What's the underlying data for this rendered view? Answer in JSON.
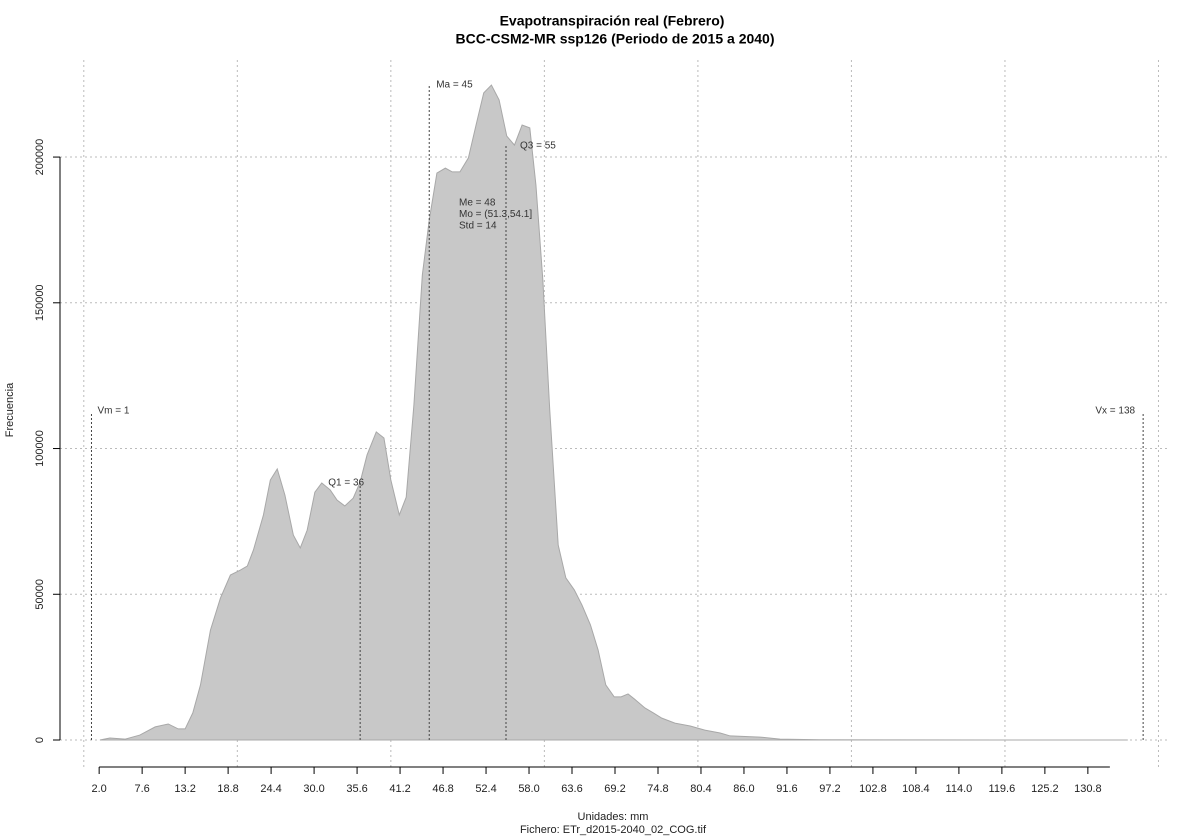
{
  "chart_data": {
    "type": "area",
    "title": "Evapotranspiración real (Febrero)",
    "subtitle": "BCC-CSM2-MR ssp126 (Periodo de 2015 a 2040)",
    "x_label": "Unidades: mm",
    "caption": "Fichero: ETr_d2015-2040_02_COG.tif",
    "y_label": "Frecuencia",
    "color": "#c8c8c8",
    "x": [
      2.1,
      3.4,
      5.4,
      7.3,
      9.3,
      11.0,
      12.3,
      13.2,
      14.2,
      15.2,
      16.5,
      17.8,
      19.1,
      20.4,
      21.3,
      22.1,
      23.4,
      24.3,
      25.2,
      26.2,
      27.3,
      28.2,
      29.1,
      30.1,
      31.0,
      32.1,
      33.0,
      34.0,
      35.1,
      36.0,
      36.9,
      38.1,
      39.1,
      40.0,
      41.1,
      42.0,
      43.0,
      44.1,
      45.0,
      46.0,
      47.1,
      48.0,
      49.0,
      50.1,
      51.1,
      52.1,
      53.1,
      54.1,
      55.1,
      56.1,
      57.1,
      58.1,
      58.9,
      59.8,
      60.7,
      61.8,
      62.8,
      63.9,
      64.9,
      66.0,
      67.0,
      68.0,
      69.1,
      70.0,
      70.9,
      71.9,
      73.1,
      74.2,
      75.3,
      77.0,
      79.0,
      80.9,
      82.9,
      84.2,
      88.1,
      90.7,
      95.9,
      106.3,
      119.3,
      136.0
    ],
    "values": [
      0,
      700,
      300,
      1700,
      4500,
      5500,
      3800,
      3800,
      9300,
      18900,
      37700,
      48700,
      56600,
      58300,
      59700,
      65200,
      77200,
      89200,
      93000,
      84000,
      70300,
      65900,
      72000,
      85000,
      88200,
      85800,
      82300,
      80300,
      83000,
      88500,
      97800,
      105700,
      103600,
      89200,
      77200,
      83300,
      114900,
      159500,
      178400,
      194500,
      196200,
      194900,
      194900,
      199700,
      211000,
      222000,
      224700,
      219600,
      207200,
      204100,
      211000,
      210000,
      190400,
      157800,
      113200,
      66900,
      55600,
      51500,
      46300,
      39500,
      30900,
      18900,
      14800,
      14800,
      15800,
      13700,
      11000,
      9300,
      7500,
      5800,
      4800,
      3400,
      2400,
      1400,
      1000,
      300,
      100,
      50,
      20,
      0
    ],
    "xlim": [
      -3.1,
      141.5
    ],
    "ylim": [
      -9260,
      233300
    ],
    "xticks": [
      {
        "value": 2,
        "label": "2.0"
      },
      7.6,
      13.2,
      18.8,
      24.4,
      {
        "value": 30,
        "label": "30.0"
      },
      35.6,
      41.2,
      46.8,
      52.4,
      {
        "value": 58,
        "label": "58.0"
      },
      63.6,
      69.2,
      74.8,
      80.4,
      {
        "value": 86,
        "label": "86.0"
      },
      91.6,
      97.2,
      102.8,
      108.4,
      {
        "value": 114,
        "label": "114.0"
      },
      119.6,
      125.2,
      130.8
    ],
    "xgrid": [
      0,
      20,
      40,
      60,
      80,
      100,
      120,
      140
    ],
    "yticks": [
      0,
      50000,
      100000,
      150000,
      200000
    ],
    "grid": true,
    "markers": [
      {
        "label": "Vm = 1",
        "x": 1
      },
      {
        "label": "Q1 = 36",
        "x": 36
      },
      {
        "label": "Ma = 45",
        "x": 45
      },
      {
        "label": "Q3 = 55",
        "x": 55
      },
      {
        "label": "Vx = 138",
        "x": 138
      }
    ],
    "stats": [
      "Me = 48",
      "Mo = (51.3,54.1]",
      "Std = 14"
    ]
  }
}
